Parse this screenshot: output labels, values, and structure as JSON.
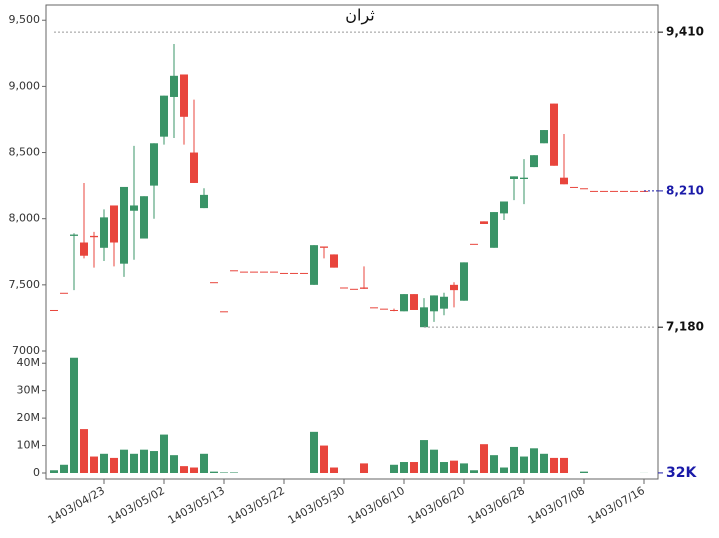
{
  "chart_data": {
    "type": "candlestick",
    "title": "ثران",
    "categories": [
      null,
      null,
      null,
      null,
      null,
      "1403/04/23",
      null,
      null,
      null,
      null,
      null,
      "1403/05/02",
      null,
      null,
      null,
      null,
      null,
      "1403/05/13",
      null,
      null,
      null,
      null,
      null,
      "1403/05/22",
      null,
      null,
      null,
      null,
      null,
      "1403/05/30",
      null,
      null,
      null,
      null,
      null,
      "1403/06/10",
      null,
      null,
      null,
      null,
      null,
      "1403/06/20",
      null,
      null,
      null,
      null,
      null,
      "1403/06/28",
      null,
      null,
      null,
      null,
      null,
      "1403/07/08",
      null,
      null,
      null,
      null,
      null,
      "1403/07/16"
    ],
    "open": [
      7310,
      7440,
      7870,
      7820,
      7870,
      7780,
      8100,
      7660,
      8060,
      7850,
      8250,
      8620,
      8920,
      9090,
      8500,
      8080,
      7520,
      7300,
      7610,
      7600,
      7600,
      7600,
      7600,
      7590,
      7590,
      7590,
      7500,
      7790,
      7730,
      7480,
      7470,
      7480,
      7330,
      7320,
      7310,
      7300,
      7430,
      7180,
      7300,
      7320,
      7500,
      7380,
      7810,
      7980,
      7780,
      8040,
      8300,
      8300,
      8390,
      8570,
      8870,
      8310,
      8240,
      8230,
      8210,
      8210,
      8210,
      8210,
      8210,
      8210
    ],
    "high": [
      7310,
      7440,
      7890,
      8270,
      7900,
      8070,
      8100,
      8240,
      8550,
      8170,
      8570,
      8930,
      9320,
      9090,
      8900,
      8230,
      7520,
      7300,
      7610,
      7600,
      7600,
      7600,
      7600,
      7590,
      7590,
      7590,
      7800,
      7790,
      7730,
      7480,
      7470,
      7640,
      7330,
      7320,
      7320,
      7430,
      7430,
      7400,
      7420,
      7440,
      7520,
      7670,
      7810,
      7980,
      8050,
      8130,
      8320,
      8450,
      8480,
      8670,
      8870,
      8640,
      8240,
      8230,
      8210,
      8210,
      8210,
      8210,
      8210,
      8210
    ],
    "low": [
      7310,
      7440,
      7460,
      7700,
      7630,
      7680,
      7640,
      7560,
      7690,
      7850,
      8000,
      8560,
      8610,
      8560,
      8270,
      8080,
      7520,
      7300,
      7610,
      7600,
      7600,
      7600,
      7600,
      7590,
      7590,
      7590,
      7500,
      7700,
      7630,
      7480,
      7470,
      7470,
      7330,
      7320,
      7300,
      7300,
      7310,
      7180,
      7220,
      7270,
      7330,
      7380,
      7810,
      7960,
      7780,
      7990,
      8140,
      8110,
      8390,
      8570,
      8400,
      8260,
      8240,
      8230,
      8210,
      8210,
      8210,
      8210,
      8210,
      8210
    ],
    "close": [
      7310,
      7440,
      7880,
      7720,
      7860,
      8010,
      7820,
      8240,
      8100,
      8170,
      8570,
      8930,
      9080,
      8770,
      8270,
      8180,
      7520,
      7300,
      7610,
      7600,
      7600,
      7600,
      7600,
      7590,
      7590,
      7590,
      7800,
      7780,
      7630,
      7480,
      7470,
      7470,
      7330,
      7320,
      7310,
      7430,
      7310,
      7330,
      7420,
      7410,
      7460,
      7670,
      7810,
      7960,
      8050,
      8130,
      8320,
      8310,
      8480,
      8670,
      8400,
      8260,
      8240,
      8230,
      8210,
      8210,
      8210,
      8210,
      8210,
      8210
    ],
    "volume": [
      1000000,
      3000000,
      42000000,
      16000000,
      6000000,
      7000000,
      5500000,
      8500000,
      7000000,
      8500000,
      8000000,
      14000000,
      6500000,
      2500000,
      2000000,
      7000000,
      500000,
      200000,
      200000,
      0,
      0,
      0,
      0,
      0,
      0,
      0,
      15000000,
      10000000,
      2000000,
      0,
      0,
      3500000,
      0,
      0,
      3000000,
      4000000,
      4000000,
      12000000,
      8500000,
      4000000,
      4500000,
      3500000,
      1000000,
      10500000,
      6500000,
      2000000,
      9500000,
      6000000,
      9000000,
      7000000,
      5500000,
      5500000,
      0,
      500000,
      0,
      0,
      0,
      0,
      0,
      32000
    ],
    "up_color": "#3a9467",
    "down_color": "#e8453c",
    "ylim": [
      7000,
      9600
    ],
    "yticks": [
      7000,
      {
        "value": 7500,
        "label": "7,500"
      },
      {
        "value": 8000,
        "label": "8,000"
      },
      {
        "value": 8500,
        "label": "8,500"
      },
      {
        "value": 9000,
        "label": "9,000"
      },
      {
        "value": 9500,
        "label": "9,500"
      }
    ],
    "volume_ylim": [
      0,
      43000000
    ],
    "volume_yticks": [
      0,
      {
        "value": 10000000,
        "label": "10M"
      },
      {
        "value": 20000000,
        "label": "20M"
      },
      {
        "value": 30000000,
        "label": "30M"
      },
      {
        "value": 40000000,
        "label": "40M"
      }
    ],
    "annotations": [
      {
        "value": 9410,
        "label": "9,410",
        "line": true,
        "color": "#111111"
      },
      {
        "value": 8210,
        "label": "8,210",
        "line": false,
        "color": "#1a1aa8"
      },
      {
        "value": 7180,
        "label": "7,180",
        "line": true,
        "color": "#111111"
      }
    ],
    "volume_annotation": {
      "value": 32000,
      "label": "32K",
      "color": "#1a1aa8"
    }
  }
}
